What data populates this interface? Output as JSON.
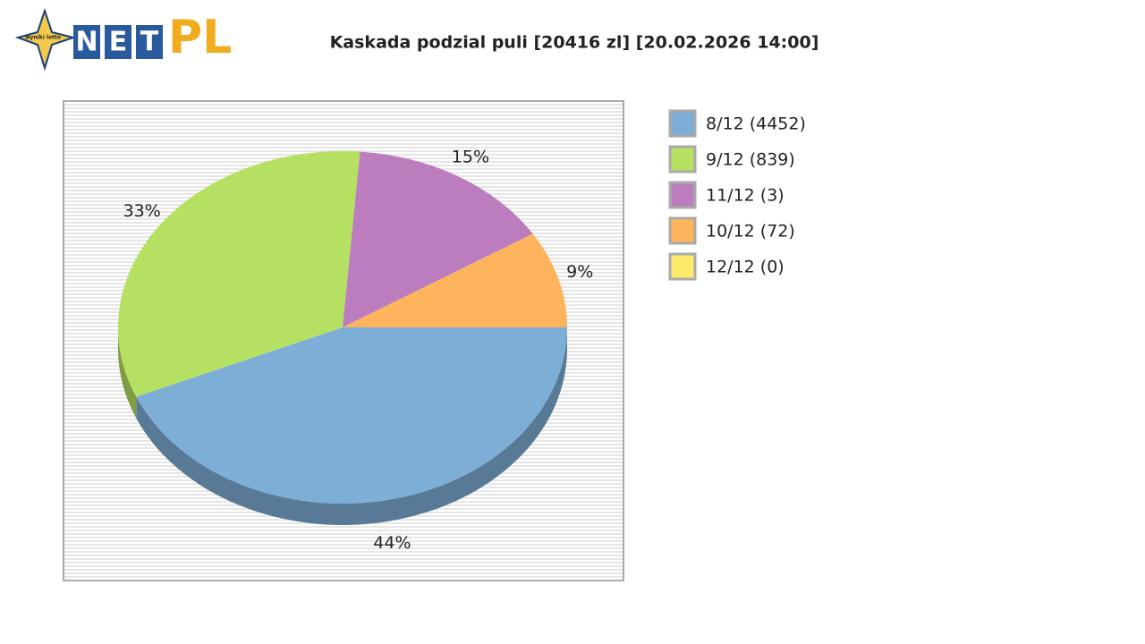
{
  "logo": {
    "star": "wyniki lotto",
    "net": [
      "N",
      "E",
      "T"
    ],
    "pl": "PL"
  },
  "chart_data": {
    "type": "pie",
    "title": "Kaskada podzial puli [20416 zl] [20.02.2026 14:00]",
    "categories": [
      "8/12 (4452)",
      "9/12 (839)",
      "11/12 (3)",
      "10/12 (72)",
      "12/12 (0)"
    ],
    "values": [
      44,
      33,
      15,
      9,
      0
    ],
    "value_labels": [
      "44%",
      "33%",
      "15%",
      "9%",
      null
    ],
    "colors": [
      "#7daed6",
      "#b5e061",
      "#bc7dbe",
      "#fdb45c",
      "#fde96a"
    ],
    "legend": "right"
  }
}
